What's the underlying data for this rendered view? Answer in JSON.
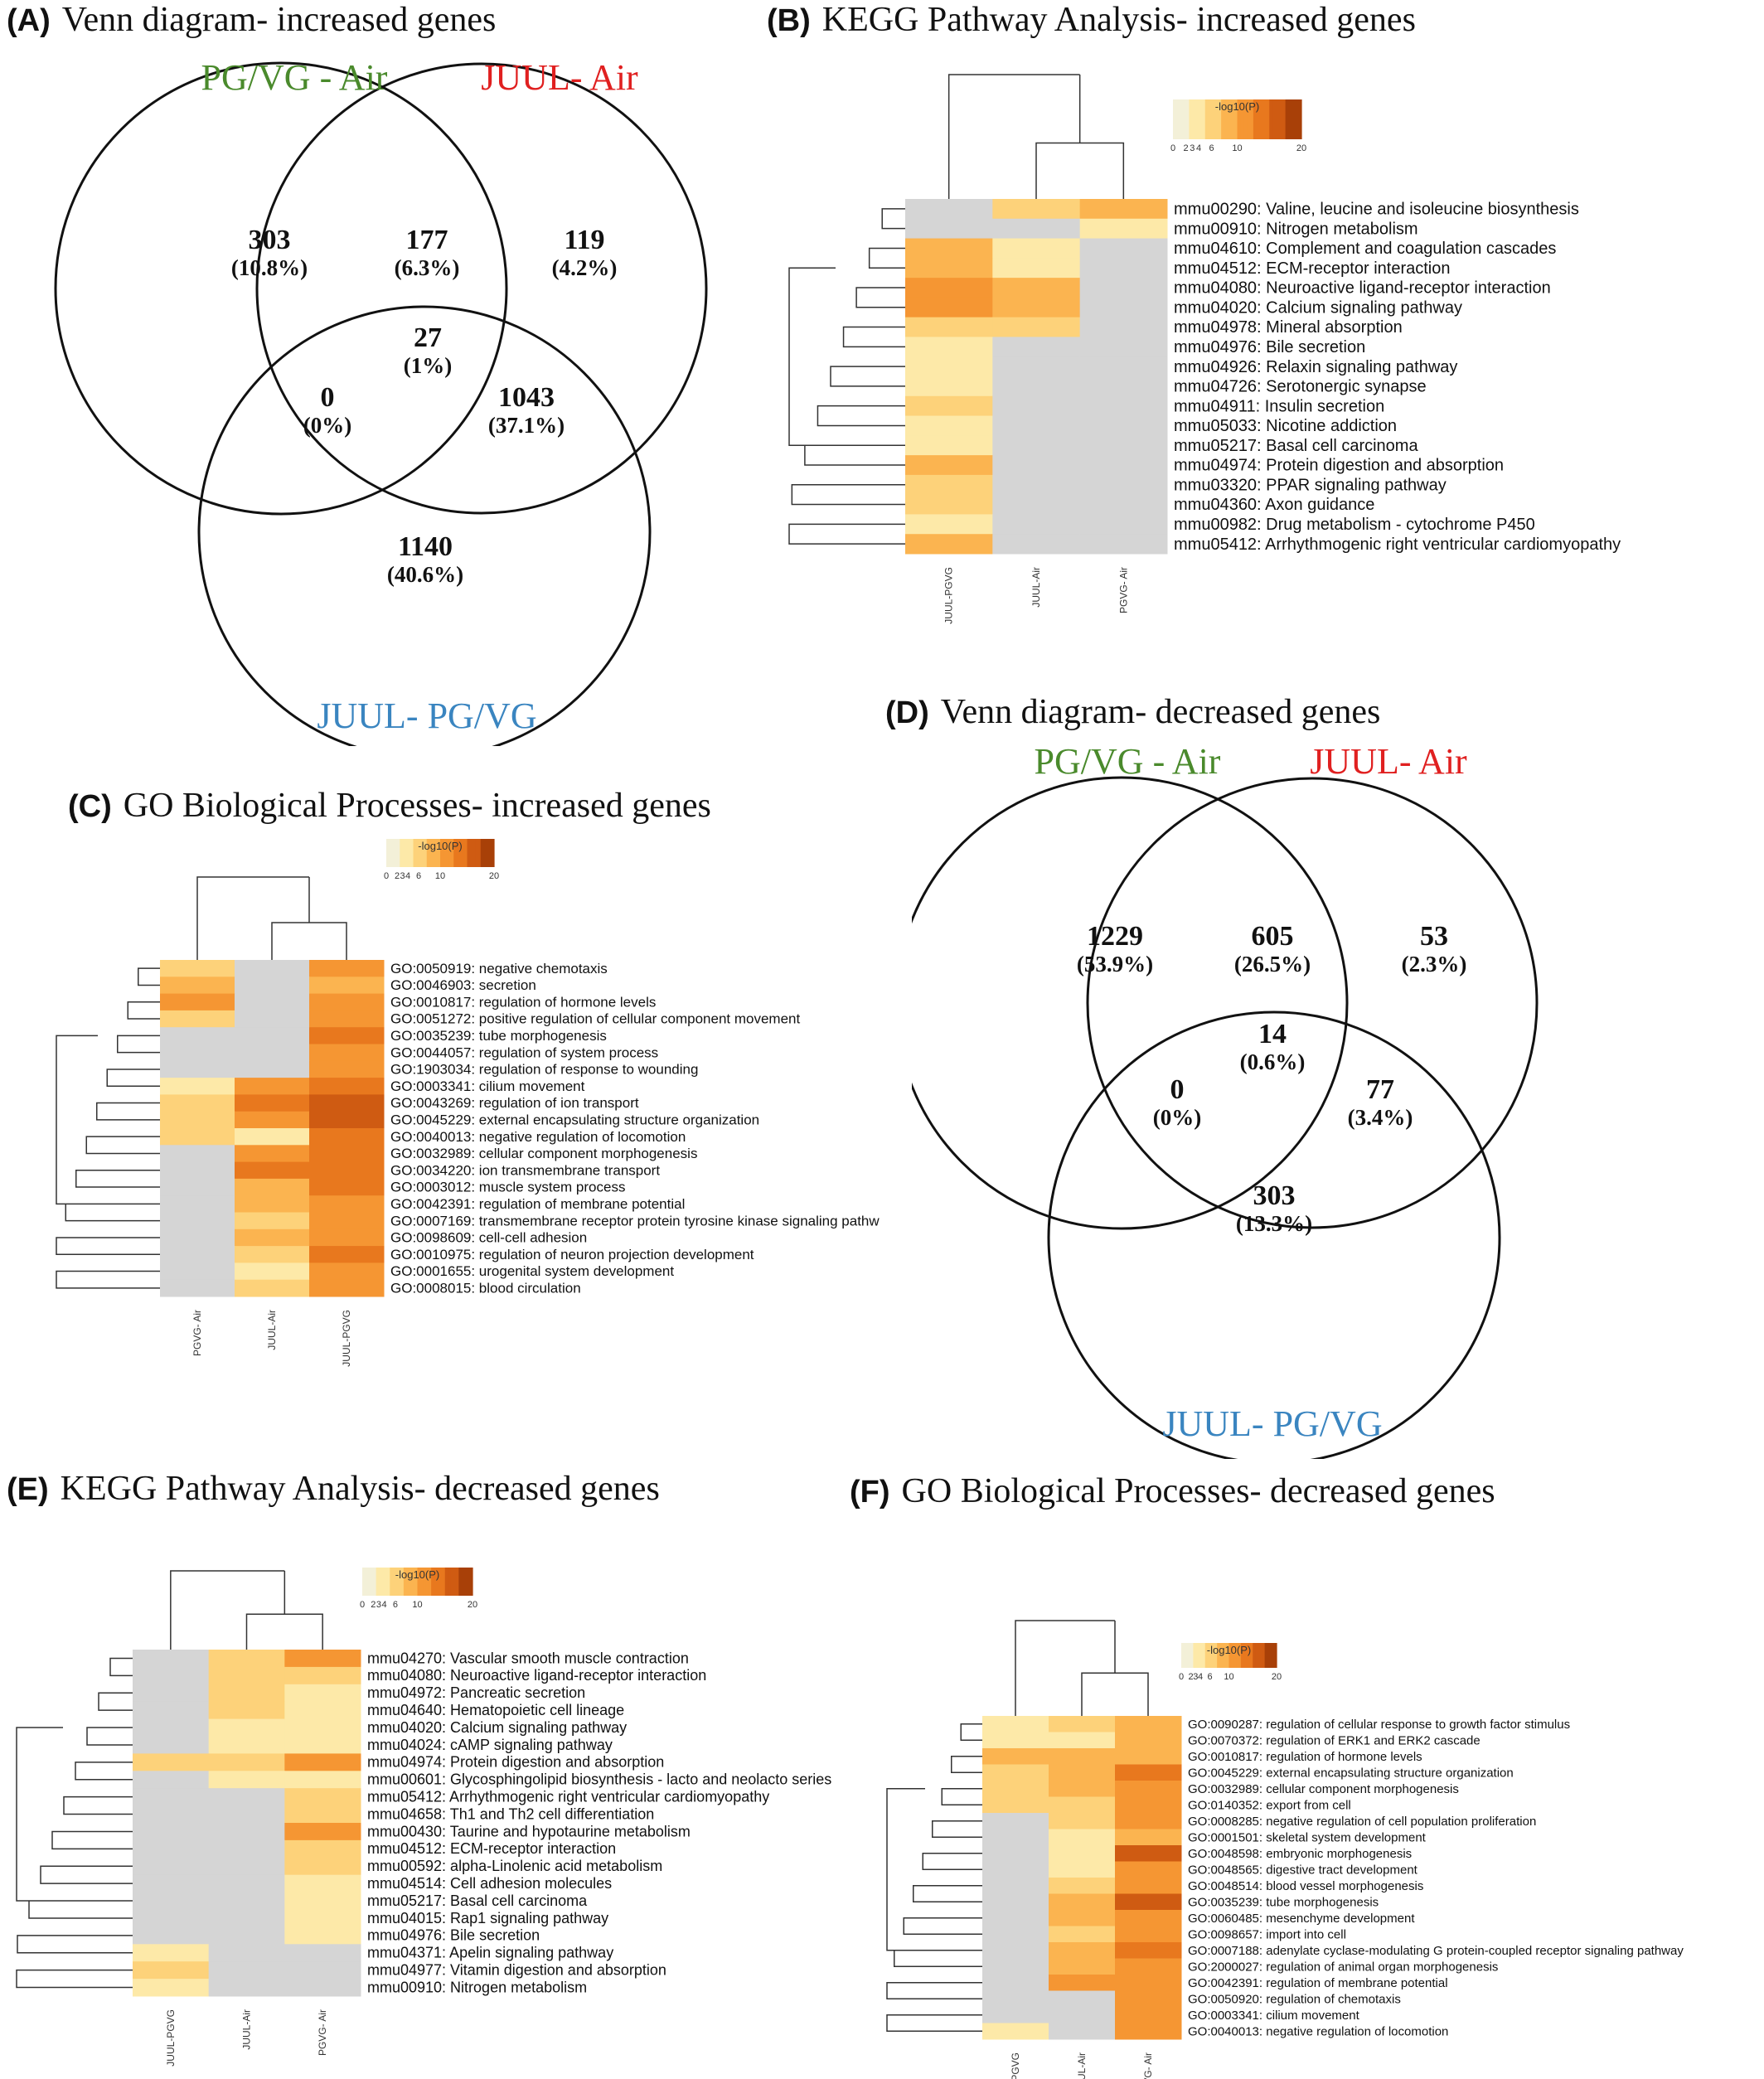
{
  "colors": {
    "gray": "#d5d5d5",
    "pgvg_air": "#4a8a2c",
    "juul_air": "#e02020",
    "juul_pgvg": "#3a85c0",
    "scale": [
      "#f3f0d8",
      "#fde9a8",
      "#fdd27a",
      "#fbb450",
      "#f59633",
      "#e8781e",
      "#cf5b12",
      "#a84008"
    ]
  },
  "venn": [
    {
      "id": "A",
      "label": "(A)",
      "title": "Venn diagram- increased genes",
      "sets": [
        "PG/VG - Air",
        "JUUL- Air",
        "JUUL- PG/VG"
      ],
      "regions": [
        {
          "count": "303",
          "pct": "(10.8%)"
        },
        {
          "count": "177",
          "pct": "(6.3%)"
        },
        {
          "count": "119",
          "pct": "(4.2%)"
        },
        {
          "count": "27",
          "pct": "(1%)"
        },
        {
          "count": "0",
          "pct": "(0%)"
        },
        {
          "count": "1043",
          "pct": "(37.1%)"
        },
        {
          "count": "1140",
          "pct": "(40.6%)"
        }
      ]
    },
    {
      "id": "D",
      "label": "(D)",
      "title": "Venn diagram- decreased genes",
      "sets": [
        "PG/VG - Air",
        "JUUL- Air",
        "JUUL- PG/VG"
      ],
      "regions": [
        {
          "count": "1229",
          "pct": "(53.9%)"
        },
        {
          "count": "605",
          "pct": "(26.5%)"
        },
        {
          "count": "53",
          "pct": "(2.3%)"
        },
        {
          "count": "14",
          "pct": "(0.6%)"
        },
        {
          "count": "0",
          "pct": "(0%)"
        },
        {
          "count": "77",
          "pct": "(3.4%)"
        },
        {
          "count": "303",
          "pct": "(13.3%)"
        }
      ]
    }
  ],
  "heatmaps": [
    {
      "id": "B",
      "label": "(B)",
      "title": "KEGG Pathway Analysis- increased genes",
      "legend": {
        "title": "-log10(P)",
        "ticks": [
          "0",
          "2",
          "3",
          "4",
          "6",
          "10",
          "20"
        ]
      },
      "columns": [
        "JUUL-PGVG",
        "JUUL-Air",
        "PGVG- Air"
      ],
      "rows": [
        "mmu00290: Valine, leucine and isoleucine biosynthesis",
        "mmu00910: Nitrogen metabolism",
        "mmu04610: Complement and coagulation cascades",
        "mmu04512: ECM-receptor interaction",
        "mmu04080: Neuroactive ligand-receptor interaction",
        "mmu04020: Calcium signaling pathway",
        "mmu04978: Mineral absorption",
        "mmu04976: Bile secretion",
        "mmu04926: Relaxin signaling pathway",
        "mmu04726: Serotonergic synapse",
        "mmu04911: Insulin secretion",
        "mmu05033: Nicotine addiction",
        "mmu05217: Basal cell carcinoma",
        "mmu04974: Protein digestion and absorption",
        "mmu03320: PPAR signaling pathway",
        "mmu04360: Axon guidance",
        "mmu00982: Drug metabolism - cytochrome P450",
        "mmu05412: Arrhythmogenic right ventricular cardiomyopathy"
      ],
      "values": [
        [
          0,
          3,
          4
        ],
        [
          0,
          0,
          2
        ],
        [
          4,
          2,
          0
        ],
        [
          4,
          1.5,
          0
        ],
        [
          4.5,
          4,
          0
        ],
        [
          4.5,
          4,
          0
        ],
        [
          3,
          2.5,
          0
        ],
        [
          1.5,
          0,
          0
        ],
        [
          2,
          0,
          0
        ],
        [
          2,
          0,
          0
        ],
        [
          2.5,
          0,
          0
        ],
        [
          2,
          0,
          0
        ],
        [
          1.5,
          0,
          0
        ],
        [
          4,
          0,
          0
        ],
        [
          3,
          0,
          0
        ],
        [
          3,
          0,
          0
        ],
        [
          2,
          0,
          0
        ],
        [
          4,
          0,
          0
        ]
      ]
    },
    {
      "id": "C",
      "label": "(C)",
      "title": "GO Biological Processes- increased genes",
      "legend": {
        "title": "-log10(P)",
        "ticks": [
          "0",
          "2",
          "3",
          "4",
          "6",
          "10",
          "20"
        ]
      },
      "columns": [
        "PGVG- Air",
        "JUUL-Air",
        "JUUL-PGVG"
      ],
      "rows": [
        "GO:0050919: negative chemotaxis",
        "GO:0046903: secretion",
        "GO:0010817: regulation of hormone levels",
        "GO:0051272: positive regulation of cellular component movement",
        "GO:0035239: tube morphogenesis",
        "GO:0044057: regulation of system process",
        "GO:1903034: regulation of response to wounding",
        "GO:0003341: cilium movement",
        "GO:0043269: regulation of ion transport",
        "GO:0045229: external encapsulating structure organization",
        "GO:0040013: negative regulation of locomotion",
        "GO:0032989: cellular component morphogenesis",
        "GO:0034220: ion transmembrane transport",
        "GO:0003012: muscle system process",
        "GO:0042391: regulation of membrane potential",
        "GO:0007169: transmembrane receptor protein tyrosine kinase signaling pathw",
        "GO:0098609: cell-cell adhesion",
        "GO:0010975: regulation of neuron projection development",
        "GO:0001655: urogenital system development",
        "GO:0008015: blood circulation"
      ],
      "values": [
        [
          3,
          0,
          5
        ],
        [
          4,
          0,
          4
        ],
        [
          4.5,
          0,
          4.5
        ],
        [
          2.5,
          0,
          5
        ],
        [
          0,
          0,
          5.5
        ],
        [
          0,
          0,
          5
        ],
        [
          0,
          0,
          5
        ],
        [
          2,
          5,
          6
        ],
        [
          2.5,
          6,
          6.5
        ],
        [
          3,
          5,
          6.5
        ],
        [
          2.5,
          1.5,
          5.5
        ],
        [
          0,
          5,
          5.5
        ],
        [
          0,
          5.5,
          5.5
        ],
        [
          0,
          4,
          5.5
        ],
        [
          0,
          3.5,
          5
        ],
        [
          0,
          3,
          5
        ],
        [
          0,
          3.5,
          5
        ],
        [
          0,
          3,
          5.5
        ],
        [
          0,
          2,
          5
        ],
        [
          0,
          3,
          5
        ]
      ]
    },
    {
      "id": "E",
      "label": "(E)",
      "title": "KEGG Pathway Analysis- decreased genes",
      "legend": {
        "title": "-log10(P)",
        "ticks": [
          "0",
          "2",
          "3",
          "4",
          "6",
          "10",
          "20"
        ]
      },
      "columns": [
        "JUUL-PGVG",
        "JUUL-Air",
        "PGVG- Air"
      ],
      "rows": [
        "mmu04270: Vascular smooth muscle contraction",
        "mmu04080: Neuroactive ligand-receptor interaction",
        "mmu04972: Pancreatic secretion",
        "mmu04640: Hematopoietic cell lineage",
        "mmu04020: Calcium signaling pathway",
        "mmu04024: cAMP signaling pathway",
        "mmu04974: Protein digestion and absorption",
        "mmu00601: Glycosphingolipid biosynthesis - lacto and neolacto series",
        "mmu05412: Arrhythmogenic right ventricular cardiomyopathy",
        "mmu04658: Th1 and Th2 cell differentiation",
        "mmu00430: Taurine and hypotaurine metabolism",
        "mmu04512: ECM-receptor interaction",
        "mmu00592: alpha-Linolenic acid metabolism",
        "mmu04514: Cell adhesion molecules",
        "mmu05217: Basal cell carcinoma",
        "mmu04015: Rap1 signaling pathway",
        "mmu04976: Bile secretion",
        "mmu04371: Apelin signaling pathway",
        "mmu04977: Vitamin digestion and absorption",
        "mmu00910: Nitrogen metabolism"
      ],
      "values": [
        [
          0,
          3,
          4.5
        ],
        [
          0,
          3,
          2.5
        ],
        [
          0,
          3,
          2
        ],
        [
          0,
          2.5,
          2
        ],
        [
          0,
          2,
          2
        ],
        [
          0,
          2,
          2
        ],
        [
          2.5,
          3,
          4.5
        ],
        [
          0,
          2,
          2
        ],
        [
          0,
          0,
          3
        ],
        [
          0,
          0,
          3
        ],
        [
          0,
          0,
          5
        ],
        [
          0,
          0,
          2.5
        ],
        [
          0,
          0,
          2.5
        ],
        [
          0,
          0,
          2
        ],
        [
          0,
          0,
          2
        ],
        [
          0,
          0,
          2
        ],
        [
          0,
          0,
          2
        ],
        [
          2,
          0,
          0
        ],
        [
          2.5,
          0,
          0
        ],
        [
          2,
          0,
          0
        ]
      ]
    },
    {
      "id": "F",
      "label": "(F)",
      "title": "GO Biological Processes- decreased genes",
      "legend": {
        "title": "-log10(P)",
        "ticks": [
          "0",
          "2",
          "3",
          "4",
          "6",
          "10",
          "20"
        ]
      },
      "columns": [
        "JUUL-PGVG",
        "JUUL-Air",
        "PGVG- Air"
      ],
      "rows": [
        "GO:0090287: regulation of cellular response to growth factor stimulus",
        "GO:0070372: regulation of ERK1 and ERK2 cascade",
        "GO:0010817: regulation of hormone levels",
        "GO:0045229: external encapsulating structure organization",
        "GO:0032989: cellular component morphogenesis",
        "GO:0140352: export from cell",
        "GO:0008285: negative regulation of cell population proliferation",
        "GO:0001501: skeletal system development",
        "GO:0048598: embryonic morphogenesis",
        "GO:0048565: digestive tract development",
        "GO:0048514: blood vessel morphogenesis",
        "GO:0035239: tube morphogenesis",
        "GO:0060485: mesenchyme development",
        "GO:0098657: import into cell",
        "GO:0007188: adenylate cyclase-modulating G protein-coupled receptor signaling pathway",
        "GO:2000027: regulation of animal organ morphogenesis",
        "GO:0042391: regulation of membrane potential",
        "GO:0050920: regulation of chemotaxis",
        "GO:0003341: cilium movement",
        "GO:0040013: negative regulation of locomotion"
      ],
      "values": [
        [
          2,
          2.5,
          4
        ],
        [
          1.5,
          2,
          3.5
        ],
        [
          4,
          3.5,
          3.5
        ],
        [
          3,
          4,
          6
        ],
        [
          3,
          3.5,
          5
        ],
        [
          3,
          3,
          4.5
        ],
        [
          0,
          2.5,
          4.5
        ],
        [
          0,
          2,
          4
        ],
        [
          0,
          2,
          6.5
        ],
        [
          0,
          2,
          5
        ],
        [
          0,
          2.5,
          5
        ],
        [
          0,
          3.5,
          7
        ],
        [
          0,
          4,
          5
        ],
        [
          0,
          3,
          5
        ],
        [
          0,
          3.5,
          5.5
        ],
        [
          0,
          4,
          5
        ],
        [
          0,
          5,
          5
        ],
        [
          0,
          0,
          5
        ],
        [
          0,
          0,
          5
        ],
        [
          2,
          0,
          4.5
        ]
      ]
    }
  ]
}
